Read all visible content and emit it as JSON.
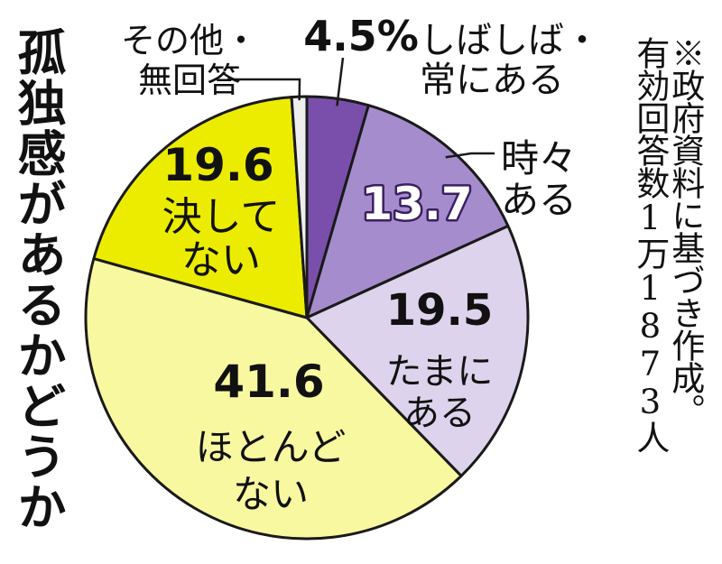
{
  "title": "孤独感があるかどうか",
  "note": {
    "line1": "※政府資料に基づき作成。",
    "line2": "有効回答数1万1873人"
  },
  "chart_data": {
    "type": "pie",
    "title": "孤独感があるかどうか",
    "start": "12 o'clock",
    "direction": "clockwise",
    "slices": [
      {
        "label": "しばしば・常にある",
        "label_lines": [
          "しばしば・",
          "常にある"
        ],
        "value": 4.5,
        "display": "4.5%",
        "color": "#7a4fab"
      },
      {
        "label": "時々ある",
        "label_lines": [
          "時々",
          "ある"
        ],
        "value": 13.7,
        "display": "13.7",
        "color": "#a58ccc"
      },
      {
        "label": "たまにある",
        "label_lines": [
          "たまに",
          "ある"
        ],
        "value": 19.5,
        "display": "19.5",
        "color": "#ddd3ec"
      },
      {
        "label": "ほとんどない",
        "label_lines": [
          "ほとんど",
          "ない"
        ],
        "value": 41.6,
        "display": "41.6",
        "color": "#f8f8a0"
      },
      {
        "label": "決してない",
        "label_lines": [
          "決して",
          "ない"
        ],
        "value": 19.6,
        "display": "19.6",
        "color": "#ecec00"
      },
      {
        "label": "その他・無回答",
        "label_lines": [
          "その他・",
          "無回答"
        ],
        "value": 1.1,
        "display": "",
        "color": "#eeeeee"
      }
    ]
  }
}
